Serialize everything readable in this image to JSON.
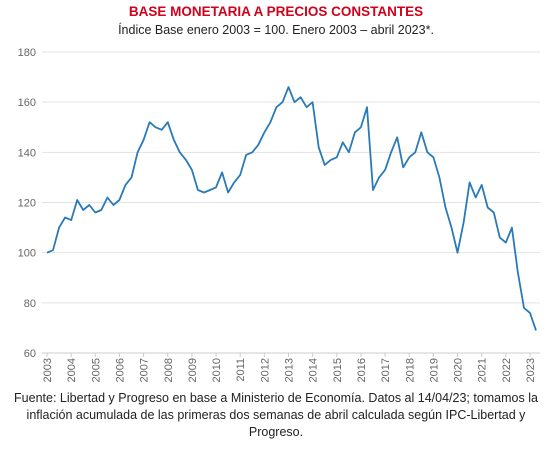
{
  "chart_data": {
    "type": "line",
    "title": "BASE MONETARIA A PRECIOS CONSTANTES",
    "subtitle": "Índice Base enero 2003 = 100. Enero 2003 – abril 2023*.",
    "source": "Fuente: Libertad y Progreso en base a Ministerio de Economía. Datos al 14/04/23; tomamos la inflación acumulada de las primeras dos semanas de abril calculada según IPC-Libertad y Progreso.",
    "categories": [
      "2003",
      null,
      null,
      null,
      "2004",
      null,
      null,
      null,
      "2005",
      null,
      null,
      null,
      "2006",
      null,
      null,
      null,
      "2007",
      null,
      null,
      null,
      "2008",
      null,
      null,
      null,
      "2009",
      null,
      null,
      null,
      "2010",
      null,
      null,
      null,
      "2011",
      null,
      null,
      null,
      "2012",
      null,
      null,
      null,
      "2013",
      null,
      null,
      null,
      "2014",
      null,
      null,
      null,
      "2015",
      null,
      null,
      null,
      "2016",
      null,
      null,
      null,
      "2017",
      null,
      null,
      null,
      "2018",
      null,
      null,
      null,
      "2019",
      null,
      null,
      null,
      "2020",
      null,
      null,
      null,
      "2021",
      null,
      null,
      null,
      "2022",
      null,
      null,
      null,
      "2023",
      null
    ],
    "series": [
      {
        "name": "Base monetaria",
        "color": "#2a7ab8",
        "values": [
          100,
          101,
          110,
          114,
          113,
          121,
          117,
          119,
          116,
          117,
          122,
          119,
          121,
          127,
          130,
          140,
          145,
          152,
          150,
          149,
          152,
          145,
          140,
          137,
          133,
          125,
          124,
          125,
          126,
          132,
          124,
          128,
          131,
          139,
          140,
          143,
          148,
          152,
          158,
          160,
          166,
          160,
          162,
          158,
          160,
          142,
          135,
          137,
          138,
          144,
          140,
          148,
          150,
          158,
          125,
          130,
          133,
          140,
          146,
          134,
          138,
          140,
          148,
          140,
          138,
          130,
          118,
          110,
          100,
          112,
          128,
          122,
          127,
          118,
          116,
          106,
          104,
          110,
          92,
          78,
          76,
          69
        ]
      }
    ],
    "ylim": [
      60,
      180
    ],
    "yticks": [
      60,
      80,
      100,
      120,
      140,
      160,
      180
    ],
    "grid": true
  }
}
